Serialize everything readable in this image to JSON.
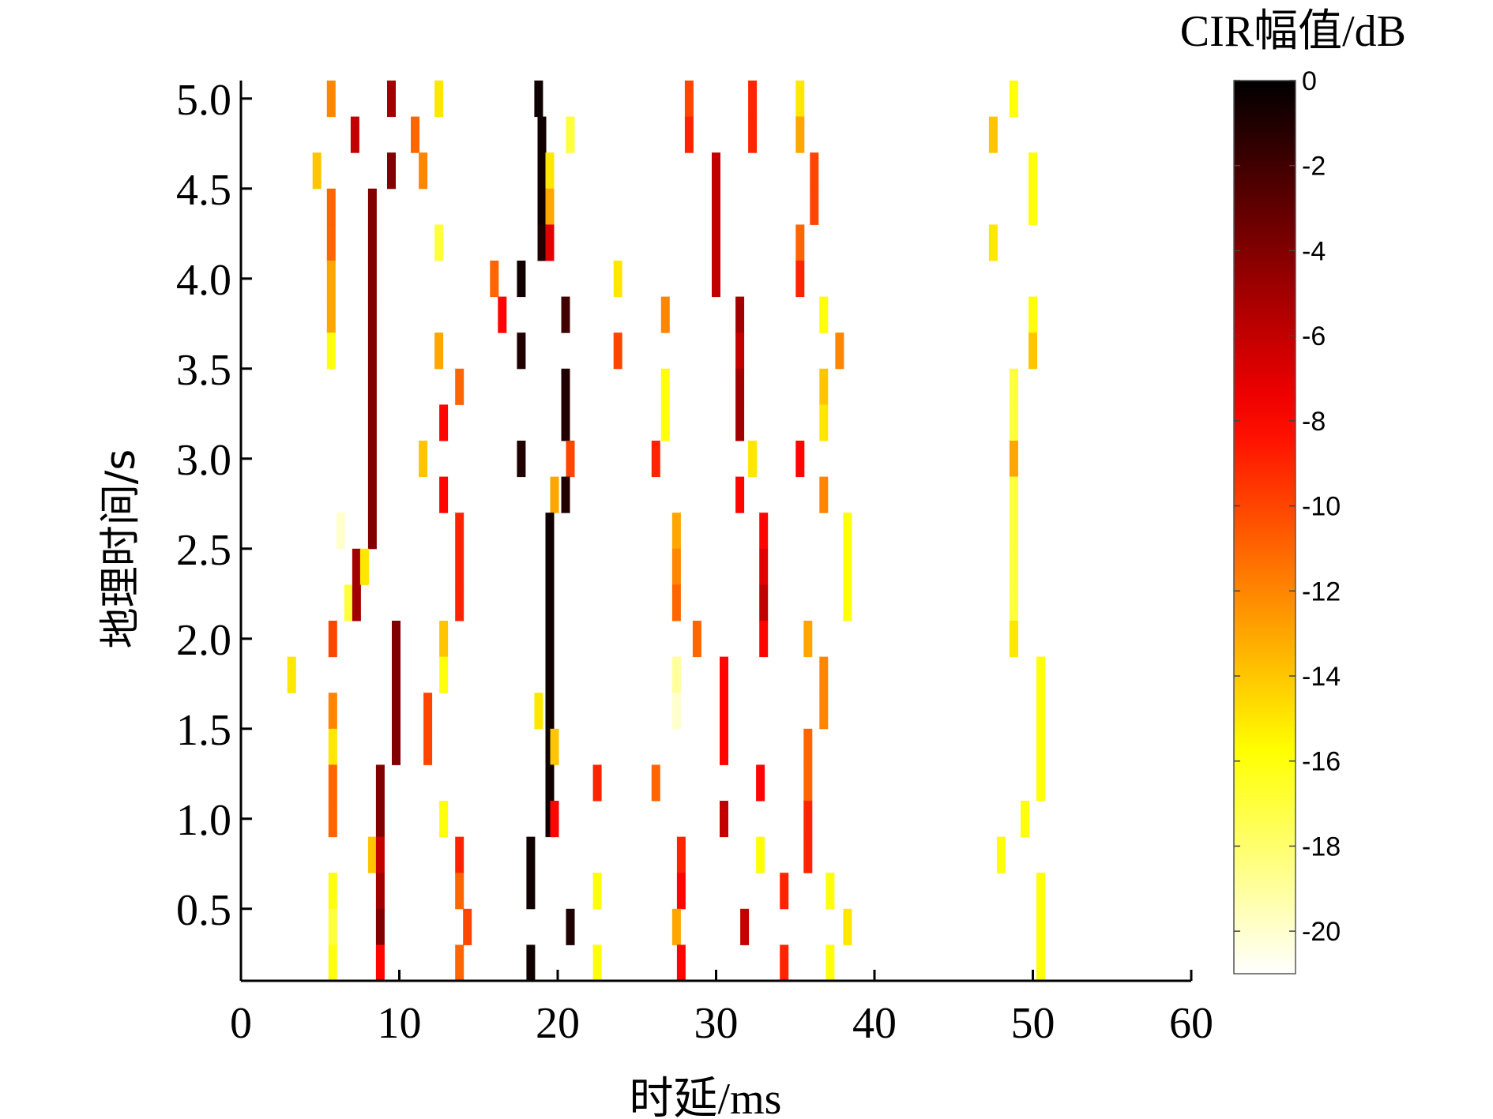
{
  "chart_data": {
    "type": "heatmap",
    "xlabel": "时延/ms",
    "ylabel": "地理时间/s",
    "colorbar_label": "CIR幅值/dB",
    "xlim": [
      0,
      60
    ],
    "ylim": [
      0.1,
      5.1
    ],
    "xticks": [
      0,
      10,
      20,
      30,
      40,
      50,
      60
    ],
    "xtick_labels": [
      "0",
      "10",
      "20",
      "30",
      "40",
      "50",
      "60"
    ],
    "yticks": [
      0.5,
      1.0,
      1.5,
      2.0,
      2.5,
      3.0,
      3.5,
      4.0,
      4.5,
      5.0
    ],
    "ytick_labels": [
      "0.5",
      "1.0",
      "1.5",
      "2.0",
      "2.5",
      "3.0",
      "3.5",
      "4.0",
      "4.5",
      "5.0"
    ],
    "clim": [
      -21,
      0
    ],
    "cbar_ticks": [
      0,
      -2,
      -4,
      -6,
      -8,
      -10,
      -12,
      -14,
      -16,
      -18,
      -20
    ],
    "cbar_tick_labels": [
      "0",
      "-2",
      "-4",
      "-6",
      "-8",
      "-10",
      "-12",
      "-14",
      "-16",
      "-18",
      "-20"
    ],
    "colormap": "hot",
    "rows": [
      {
        "t": 5.0,
        "cells": [
          [
            5.7,
            -12
          ],
          [
            9.5,
            -5
          ],
          [
            12.5,
            -15
          ],
          [
            18.8,
            -0.5
          ],
          [
            28.3,
            -10
          ],
          [
            32.3,
            -9
          ],
          [
            35.3,
            -15
          ],
          [
            48.8,
            -16
          ]
        ]
      },
      {
        "t": 4.8,
        "cells": [
          [
            7.2,
            -6
          ],
          [
            11.0,
            -11
          ],
          [
            19.0,
            -0.5
          ],
          [
            20.8,
            -17
          ],
          [
            28.3,
            -9
          ],
          [
            32.3,
            -9
          ],
          [
            35.3,
            -13
          ],
          [
            47.5,
            -14
          ]
        ]
      },
      {
        "t": 4.6,
        "cells": [
          [
            4.8,
            -14
          ],
          [
            9.5,
            -4
          ],
          [
            11.5,
            -12
          ],
          [
            19.0,
            -0.5
          ],
          [
            19.5,
            -15
          ],
          [
            30.0,
            -6
          ],
          [
            36.2,
            -10
          ],
          [
            50.0,
            -16
          ]
        ]
      },
      {
        "t": 4.4,
        "cells": [
          [
            5.7,
            -11
          ],
          [
            8.3,
            -4
          ],
          [
            19.0,
            -0.5
          ],
          [
            19.5,
            -13
          ],
          [
            30.0,
            -6
          ],
          [
            36.2,
            -10
          ],
          [
            50.0,
            -16
          ]
        ]
      },
      {
        "t": 4.2,
        "cells": [
          [
            5.7,
            -11
          ],
          [
            8.3,
            -4
          ],
          [
            12.5,
            -17
          ],
          [
            19.0,
            -1
          ],
          [
            19.5,
            -7
          ],
          [
            30.0,
            -6
          ],
          [
            35.3,
            -11
          ],
          [
            47.5,
            -15
          ]
        ]
      },
      {
        "t": 4.0,
        "cells": [
          [
            5.7,
            -13
          ],
          [
            8.3,
            -4
          ],
          [
            16.0,
            -11
          ],
          [
            17.7,
            -0.5
          ],
          [
            23.8,
            -15
          ],
          [
            30.0,
            -6
          ],
          [
            35.3,
            -9
          ]
        ]
      },
      {
        "t": 3.8,
        "cells": [
          [
            5.7,
            -13
          ],
          [
            8.3,
            -4
          ],
          [
            16.5,
            -8
          ],
          [
            20.5,
            -2
          ],
          [
            26.8,
            -12
          ],
          [
            31.5,
            -5
          ],
          [
            36.8,
            -16
          ],
          [
            50.0,
            -16
          ]
        ]
      },
      {
        "t": 3.6,
        "cells": [
          [
            5.7,
            -16
          ],
          [
            8.3,
            -4
          ],
          [
            12.5,
            -13
          ],
          [
            17.7,
            -1
          ],
          [
            23.8,
            -10
          ],
          [
            31.5,
            -6
          ],
          [
            37.8,
            -12
          ],
          [
            50.0,
            -14
          ]
        ]
      },
      {
        "t": 3.4,
        "cells": [
          [
            8.3,
            -4
          ],
          [
            13.8,
            -11
          ],
          [
            20.5,
            -1
          ],
          [
            26.8,
            -16
          ],
          [
            31.5,
            -5
          ],
          [
            36.8,
            -14
          ],
          [
            48.8,
            -17
          ]
        ]
      },
      {
        "t": 3.2,
        "cells": [
          [
            8.3,
            -4
          ],
          [
            12.8,
            -8
          ],
          [
            20.5,
            -1
          ],
          [
            26.8,
            -16
          ],
          [
            31.5,
            -5
          ],
          [
            36.8,
            -15
          ],
          [
            48.8,
            -17
          ]
        ]
      },
      {
        "t": 3.0,
        "cells": [
          [
            8.3,
            -4
          ],
          [
            11.5,
            -14
          ],
          [
            17.7,
            -1
          ],
          [
            20.8,
            -10
          ],
          [
            26.2,
            -9
          ],
          [
            32.3,
            -15
          ],
          [
            35.3,
            -8
          ],
          [
            48.8,
            -13
          ]
        ]
      },
      {
        "t": 2.8,
        "cells": [
          [
            8.3,
            -4
          ],
          [
            12.8,
            -8
          ],
          [
            19.8,
            -13
          ],
          [
            20.5,
            -1
          ],
          [
            31.5,
            -8
          ],
          [
            36.8,
            -12
          ],
          [
            48.8,
            -17
          ]
        ]
      },
      {
        "t": 2.6,
        "cells": [
          [
            6.3,
            -20
          ],
          [
            8.3,
            -4
          ],
          [
            13.8,
            -9
          ],
          [
            19.5,
            -0.5
          ],
          [
            27.5,
            -13
          ],
          [
            33.0,
            -8
          ],
          [
            38.3,
            -16
          ],
          [
            48.8,
            -17
          ]
        ]
      },
      {
        "t": 2.4,
        "cells": [
          [
            7.3,
            -5
          ],
          [
            7.8,
            -15
          ],
          [
            13.8,
            -9
          ],
          [
            19.5,
            -0.5
          ],
          [
            27.5,
            -12
          ],
          [
            33.0,
            -7
          ],
          [
            38.3,
            -16
          ],
          [
            48.8,
            -17
          ]
        ]
      },
      {
        "t": 2.2,
        "cells": [
          [
            6.8,
            -17
          ],
          [
            7.3,
            -5
          ],
          [
            13.8,
            -9
          ],
          [
            19.5,
            -0.5
          ],
          [
            27.5,
            -11
          ],
          [
            33.0,
            -6
          ],
          [
            38.3,
            -16
          ],
          [
            48.8,
            -17
          ]
        ]
      },
      {
        "t": 2.0,
        "cells": [
          [
            5.8,
            -10
          ],
          [
            9.8,
            -4
          ],
          [
            12.8,
            -14
          ],
          [
            19.5,
            -0.5
          ],
          [
            28.8,
            -11
          ],
          [
            33.0,
            -8
          ],
          [
            35.8,
            -13
          ],
          [
            48.8,
            -15
          ]
        ]
      },
      {
        "t": 1.8,
        "cells": [
          [
            3.2,
            -15
          ],
          [
            9.8,
            -4
          ],
          [
            12.8,
            -16
          ],
          [
            19.5,
            -0.5
          ],
          [
            27.5,
            -19
          ],
          [
            30.5,
            -8
          ],
          [
            36.8,
            -12
          ],
          [
            50.5,
            -16
          ]
        ]
      },
      {
        "t": 1.6,
        "cells": [
          [
            5.8,
            -12
          ],
          [
            9.8,
            -4
          ],
          [
            11.8,
            -10
          ],
          [
            18.8,
            -15
          ],
          [
            19.5,
            -0.5
          ],
          [
            27.5,
            -20
          ],
          [
            30.5,
            -8
          ],
          [
            36.8,
            -12
          ],
          [
            50.5,
            -16
          ]
        ]
      },
      {
        "t": 1.4,
        "cells": [
          [
            5.8,
            -15
          ],
          [
            9.8,
            -4
          ],
          [
            11.8,
            -10
          ],
          [
            19.5,
            -0.5
          ],
          [
            19.8,
            -14
          ],
          [
            30.5,
            -8
          ],
          [
            35.8,
            -11
          ],
          [
            50.5,
            -16
          ]
        ]
      },
      {
        "t": 1.2,
        "cells": [
          [
            5.8,
            -11
          ],
          [
            8.8,
            -4
          ],
          [
            19.5,
            -0.5
          ],
          [
            22.5,
            -9
          ],
          [
            26.2,
            -11
          ],
          [
            32.8,
            -8
          ],
          [
            35.8,
            -11
          ],
          [
            50.5,
            -16
          ]
        ]
      },
      {
        "t": 1.0,
        "cells": [
          [
            5.8,
            -11
          ],
          [
            8.8,
            -4
          ],
          [
            12.8,
            -16
          ],
          [
            19.5,
            -0.5
          ],
          [
            19.8,
            -8
          ],
          [
            30.5,
            -6
          ],
          [
            35.8,
            -9
          ],
          [
            49.5,
            -16
          ]
        ]
      },
      {
        "t": 0.8,
        "cells": [
          [
            8.3,
            -14
          ],
          [
            8.8,
            -6
          ],
          [
            13.8,
            -9
          ],
          [
            18.3,
            -0.5
          ],
          [
            27.8,
            -9
          ],
          [
            32.8,
            -16
          ],
          [
            35.8,
            -9
          ],
          [
            48.0,
            -16
          ]
        ]
      },
      {
        "t": 0.6,
        "cells": [
          [
            5.8,
            -16
          ],
          [
            8.8,
            -5
          ],
          [
            13.8,
            -11
          ],
          [
            18.3,
            -0.5
          ],
          [
            22.5,
            -16
          ],
          [
            27.8,
            -8
          ],
          [
            34.3,
            -9
          ],
          [
            37.2,
            -16
          ],
          [
            50.5,
            -16
          ]
        ]
      },
      {
        "t": 0.4,
        "cells": [
          [
            5.8,
            -17
          ],
          [
            8.8,
            -4
          ],
          [
            14.3,
            -10
          ],
          [
            20.8,
            -1
          ],
          [
            27.5,
            -13
          ],
          [
            31.8,
            -6
          ],
          [
            38.3,
            -15
          ],
          [
            50.5,
            -16
          ]
        ]
      },
      {
        "t": 0.2,
        "cells": [
          [
            5.8,
            -16
          ],
          [
            8.8,
            -8
          ],
          [
            13.8,
            -11
          ],
          [
            18.3,
            -0.5
          ],
          [
            22.5,
            -16
          ],
          [
            27.8,
            -8
          ],
          [
            34.3,
            -9
          ],
          [
            37.2,
            -16
          ],
          [
            50.5,
            -16
          ]
        ]
      }
    ]
  }
}
